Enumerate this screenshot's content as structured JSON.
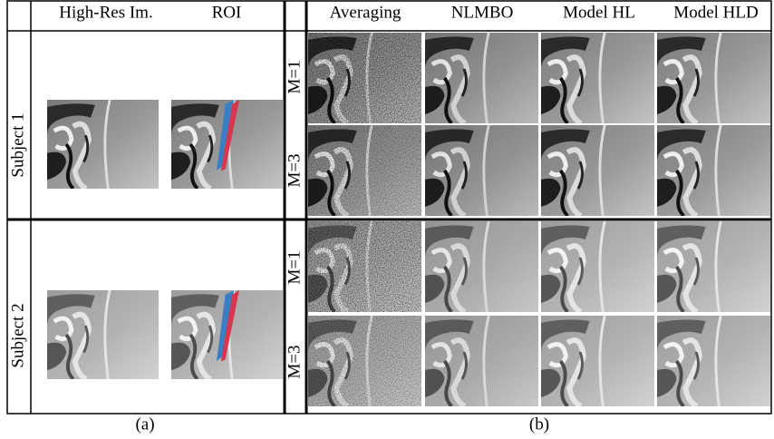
{
  "left_header": [
    "High-Res Im.",
    "ROI"
  ],
  "right_header": [
    "Averaging",
    "NLMBO",
    "Model HL",
    "Model HLD"
  ],
  "rows": [
    {
      "subject": "Subject 1",
      "levels": [
        "M=1",
        "M=3"
      ]
    },
    {
      "subject": "Subject 2",
      "levels": [
        "M=1",
        "M=3"
      ]
    }
  ],
  "captions": [
    "(a)",
    "(b)"
  ]
}
